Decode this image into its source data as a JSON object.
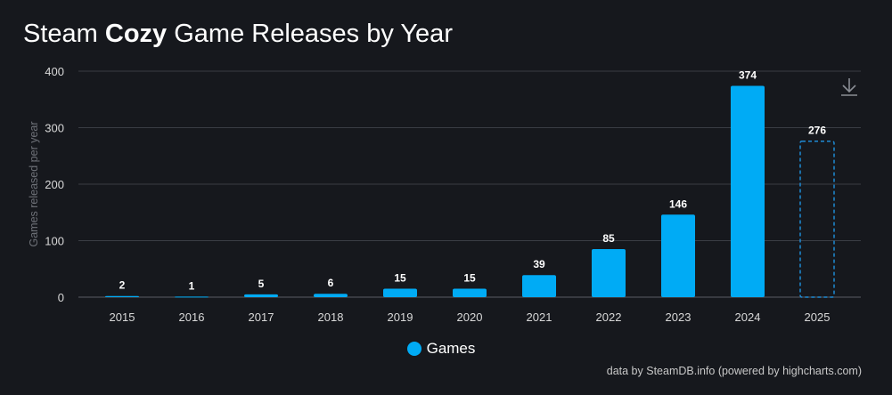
{
  "title": {
    "prefix": "Steam ",
    "bold": "Cozy",
    "suffix": " Game Releases by Year"
  },
  "colors": {
    "background": "#16181d",
    "bar": "#00abf5",
    "grid": "#3a3d44",
    "axis_text": "#d8d8d8",
    "axis_title": "#6e7178",
    "label": "#ffffff",
    "projected_stroke": "#1f8ad4"
  },
  "chart_data": {
    "type": "bar",
    "title": "Steam Cozy Game Releases by Year",
    "xlabel": "",
    "ylabel": "Games released per year",
    "ylim": [
      0,
      400
    ],
    "yticks": [
      0,
      100,
      200,
      300,
      400
    ],
    "categories": [
      "2015",
      "2016",
      "2017",
      "2018",
      "2019",
      "2020",
      "2021",
      "2022",
      "2023",
      "2024",
      "2025"
    ],
    "series": [
      {
        "name": "Games",
        "values": [
          2,
          1,
          5,
          6,
          15,
          15,
          39,
          85,
          146,
          374,
          276
        ],
        "projected": [
          false,
          false,
          false,
          false,
          false,
          false,
          false,
          false,
          false,
          false,
          true
        ]
      }
    ],
    "legend": "bottom-center",
    "grid": true
  },
  "legend": {
    "label": "Games",
    "icon": "circle-marker"
  },
  "credits": "data by SteamDB.info (powered by highcharts.com)",
  "toolbar": {
    "download_icon": "download-icon"
  }
}
